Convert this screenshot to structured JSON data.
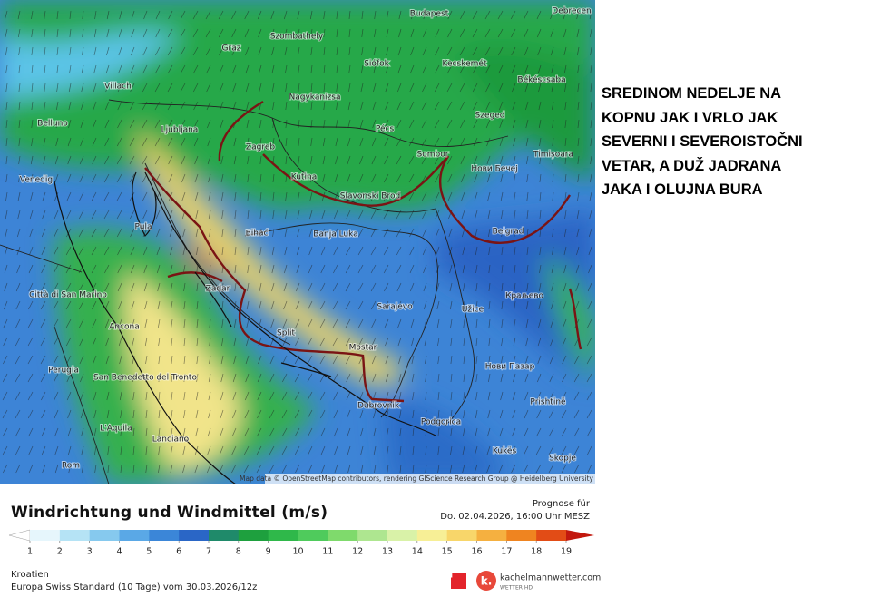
{
  "map": {
    "places": [
      "Budapest",
      "Debrecen",
      "Graz",
      "Szombathely",
      "Siófok",
      "Kecskemét",
      "Villach",
      "Nagykanizsa",
      "Békéscsaba",
      "Belluno",
      "Ljubljana",
      "Pécs",
      "Szeged",
      "Zagreb",
      "Sombor",
      "Нови Бечеј",
      "Timișoara",
      "Venedig",
      "Kutina",
      "Slavonski Brod",
      "Pula",
      "Bihać",
      "Banja Luka",
      "Belgrad",
      "Zadar",
      "Città di San Marino",
      "Sarajevo",
      "Užice",
      "Краљево",
      "Ancona",
      "Split",
      "Mostar",
      "Нови Пазар",
      "Perugia",
      "San Benedetto del Tronto",
      "Dubrovnik",
      "Prishtinë",
      "Podgorica",
      "L'Aquila",
      "Lanciano",
      "Kukës",
      "Rom",
      "Skopje"
    ],
    "attribution": "Map data © OpenStreetMap contributors, rendering GIScience Research Group @ Heidelberg University"
  },
  "legend": {
    "title": "Windrichtung und Windmittel (m/s)",
    "forecast_label": "Prognose für",
    "forecast_time": "Do. 02.04.2026, 16:00 Uhr MESZ",
    "ticks": [
      1,
      2,
      3,
      4,
      5,
      6,
      7,
      8,
      9,
      10,
      11,
      12,
      13,
      14,
      15,
      16,
      17,
      18,
      19
    ],
    "colors": [
      "#ffffff",
      "#e6f6fc",
      "#b5e3f5",
      "#86c9ee",
      "#5aa8e6",
      "#3b86d8",
      "#2a66c6",
      "#1f8a6a",
      "#1ea03e",
      "#2fb84a",
      "#4fcb5c",
      "#7fda6c",
      "#aee690",
      "#d9f2a8",
      "#f7ef96",
      "#f8d66a",
      "#f5b040",
      "#ef8420",
      "#e24c16",
      "#c2180e"
    ]
  },
  "footer": {
    "region": "Kroatien",
    "model": "Europa Swiss Standard (10 Tage) vom 30.03.2026/12z",
    "brand_logo": "k.",
    "brand": "kachelmannwetter.com",
    "brand_sub": "WETTER HD"
  },
  "note": {
    "lines": [
      "SREDINOM NEDELJE NA",
      "KOPNU JAK I VRLO JAK",
      "SEVERNI I SEVEROISTOČNI",
      "VETAR, A DUŽ JADRANA",
      "JAKA I OLUJNA BURA"
    ]
  }
}
